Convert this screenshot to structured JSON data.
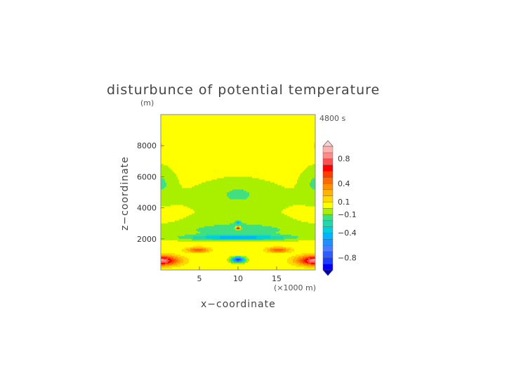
{
  "chart_data": {
    "type": "heatmap",
    "title": "disturbunce of potential temperature",
    "units_label": "(m)",
    "time_label": "4800 s",
    "xlabel": "x−coordinate",
    "ylabel": "z−coordinate",
    "x_scale_label": "(×1000 m)",
    "xlim": [
      0,
      20
    ],
    "ylim": [
      0,
      10000
    ],
    "x_ticks": [
      5,
      10,
      15
    ],
    "x_tick_labels": [
      "5",
      "10",
      "15"
    ],
    "y_ticks": [
      2000,
      4000,
      6000,
      8000
    ],
    "y_tick_labels": [
      "2000",
      "4000",
      "6000",
      "8000"
    ],
    "colorbar": {
      "levels": [
        -1.0,
        -0.9,
        -0.8,
        -0.7,
        -0.6,
        -0.5,
        -0.4,
        -0.3,
        -0.2,
        -0.1,
        0,
        0.1,
        0.2,
        0.3,
        0.4,
        0.5,
        0.6,
        0.7,
        0.8,
        0.9,
        1.0
      ],
      "colors": [
        "#0000ee",
        "#1a3cff",
        "#2f5cff",
        "#4a7dff",
        "#1e90ff",
        "#00b4ff",
        "#00cfe0",
        "#20d8b0",
        "#40e080",
        "#a8f000",
        "#ffff00",
        "#ffd800",
        "#ffb400",
        "#ff9000",
        "#ff6a00",
        "#ff3c00",
        "#ff0000",
        "#ff5050",
        "#ff8a8a",
        "#ffb0b0"
      ],
      "tick_values": [
        0.8,
        0.4,
        0.1,
        -0.1,
        -0.4,
        -0.8
      ],
      "tick_labels": [
        "0.8",
        "0.4",
        "0.1",
        "−0.1",
        "−0.4",
        "−0.8"
      ]
    },
    "field": {
      "background": 0.03,
      "features": [
        {
          "x": 0.0,
          "z": 600,
          "sx": 2.3,
          "sz": 320,
          "a": 0.85
        },
        {
          "x": 20.0,
          "z": 600,
          "sx": 2.3,
          "sz": 320,
          "a": 0.85
        },
        {
          "x": 4.8,
          "z": 1280,
          "sx": 1.5,
          "sz": 170,
          "a": 0.45
        },
        {
          "x": 15.2,
          "z": 1280,
          "sx": 1.5,
          "sz": 170,
          "a": 0.45
        },
        {
          "x": 10.0,
          "z": 2080,
          "sx": 6.5,
          "sz": 170,
          "a": -0.45
        },
        {
          "x": 10.0,
          "z": 2550,
          "sx": 9.0,
          "sz": 450,
          "a": -0.18
        },
        {
          "x": 10.0,
          "z": 650,
          "sx": 0.8,
          "sz": 160,
          "a": -0.9
        },
        {
          "x": 10.0,
          "z": 2700,
          "sx": 0.3,
          "sz": 80,
          "a": 0.9
        },
        {
          "x": 10.0,
          "z": 3050,
          "sx": 0.3,
          "sz": 110,
          "a": -0.35
        },
        {
          "x": 10.0,
          "z": 3200,
          "sx": 6.0,
          "sz": 450,
          "a": -0.06
        },
        {
          "x": 10.0,
          "z": 4900,
          "sx": 3.5,
          "sz": 850,
          "a": -0.1
        },
        {
          "x": 0.0,
          "z": 5600,
          "sx": 1.6,
          "sz": 950,
          "a": -0.14
        },
        {
          "x": 20.0,
          "z": 5600,
          "sx": 1.6,
          "sz": 950,
          "a": -0.14
        },
        {
          "x": 10.0,
          "z": 4600,
          "sx": 11.0,
          "sz": 1200,
          "a": -0.05
        },
        {
          "x": 0.0,
          "z": 8000,
          "sx": 0.35,
          "sz": 300,
          "a": 0.13
        },
        {
          "x": 20.0,
          "z": 8000,
          "sx": 0.35,
          "sz": 300,
          "a": 0.13
        }
      ]
    }
  }
}
